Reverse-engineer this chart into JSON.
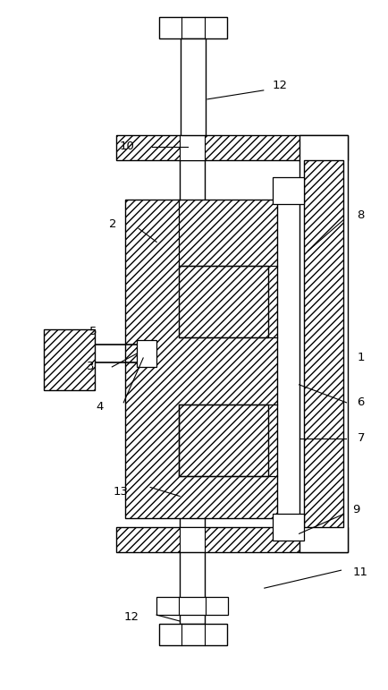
{
  "bg_color": "#ffffff",
  "line_color": "#000000",
  "fig_width": 4.35,
  "fig_height": 7.71,
  "dpi": 100
}
